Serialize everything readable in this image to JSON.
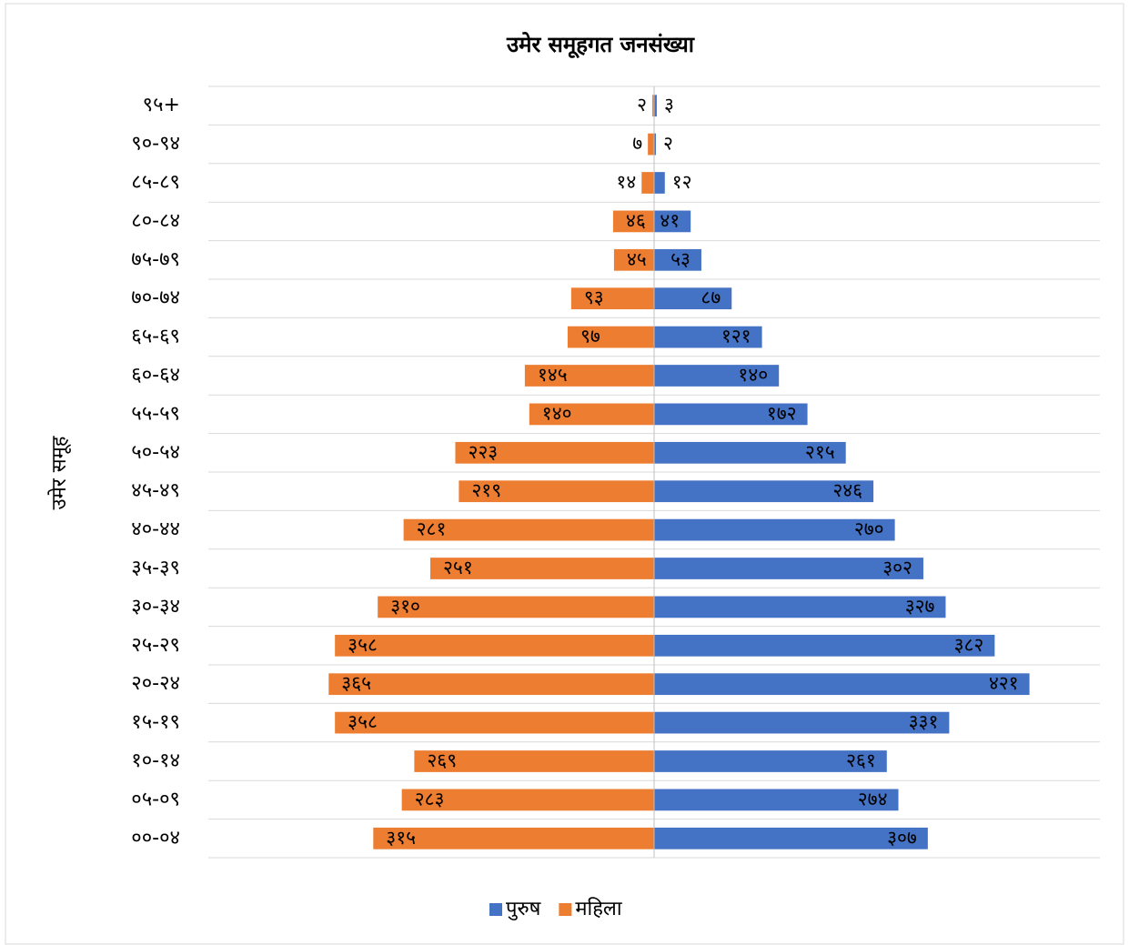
{
  "chart_data": {
    "type": "pyramid",
    "title": "उमेर समूहगत जनसंख्या",
    "y_label": "उमेर समूह",
    "categories": [
      "९५+",
      "९०-९४",
      "८५-८९",
      "८०-८४",
      "७५-७९",
      "७०-७४",
      "६५-६९",
      "६०-६४",
      "५५-५९",
      "५०-५४",
      "४५-४९",
      "४०-४४",
      "३५-३९",
      "३०-३४",
      "२५-२९",
      "२०-२४",
      "१५-१९",
      "१०-१४",
      "०५-०९",
      "००-०४"
    ],
    "series": [
      {
        "name": "पुरुष",
        "color": "#4472c4",
        "side": "right",
        "values": [
          3,
          2,
          12,
          41,
          53,
          87,
          121,
          140,
          172,
          215,
          246,
          270,
          302,
          327,
          382,
          421,
          331,
          261,
          274,
          307
        ],
        "value_labels": [
          "३",
          "२",
          "१२",
          "४१",
          "५३",
          "८७",
          "१२१",
          "१४०",
          "१७२",
          "२१५",
          "२४६",
          "२७०",
          "३०२",
          "३२७",
          "३८२",
          "४२१",
          "३३१",
          "२६१",
          "२७४",
          "३०७"
        ]
      },
      {
        "name": "महिला",
        "color": "#ed7d31",
        "side": "left",
        "values": [
          2,
          7,
          14,
          46,
          45,
          93,
          97,
          145,
          140,
          223,
          219,
          281,
          251,
          310,
          358,
          365,
          358,
          269,
          283,
          315
        ],
        "value_labels": [
          "२",
          "७",
          "१४",
          "४६",
          "४५",
          "९३",
          "९७",
          "१४५",
          "१४०",
          "२२३",
          "२१९",
          "२८१",
          "२५१",
          "३१०",
          "३५८",
          "३६५",
          "३५८",
          "२६९",
          "२८३",
          "३१५"
        ]
      }
    ],
    "xlim": [
      -500,
      500
    ],
    "grid": true,
    "legend": "bottom"
  }
}
